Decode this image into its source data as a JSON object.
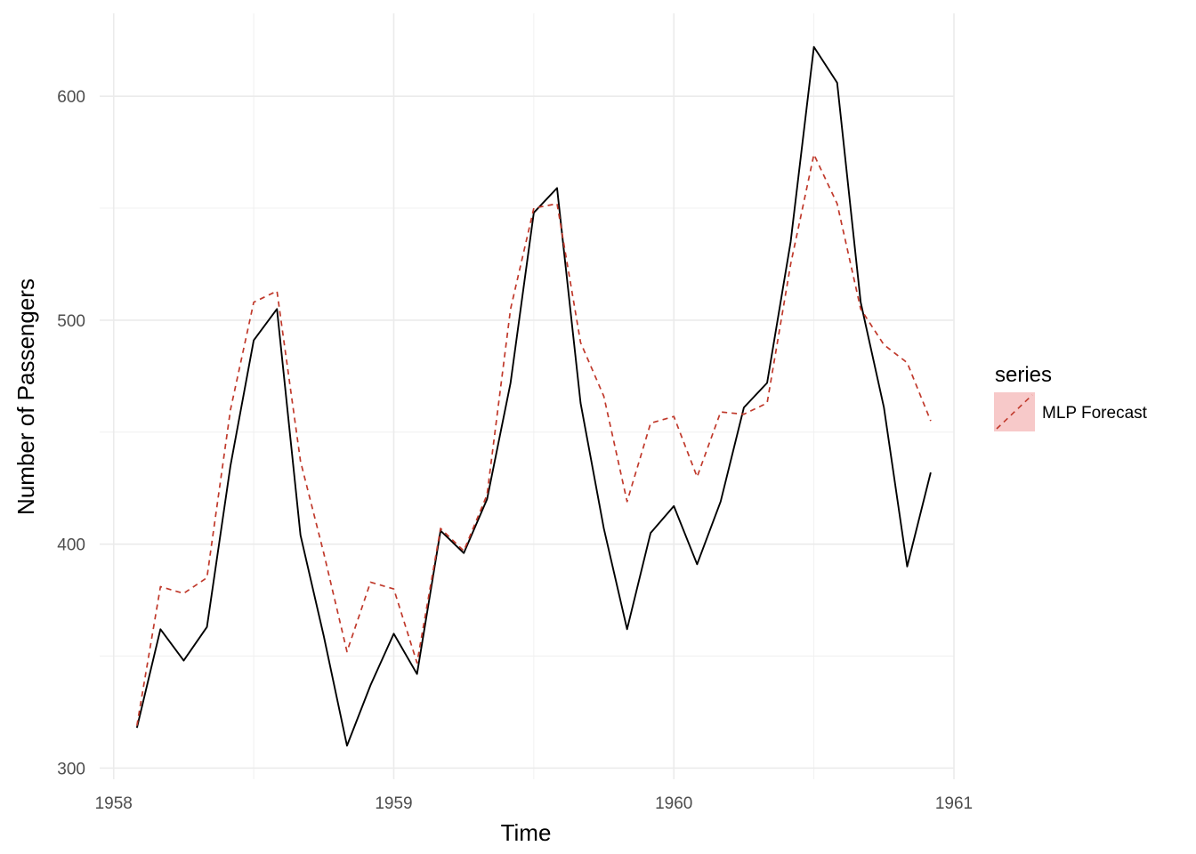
{
  "chart_data": {
    "type": "line",
    "xlabel": "Time",
    "ylabel": "Number of Passengers",
    "xlim": [
      1957.95,
      1961.0
    ],
    "ylim": [
      295,
      637
    ],
    "x_ticks": [
      1958,
      1959,
      1960,
      1961
    ],
    "x_tick_labels": [
      "1958",
      "1959",
      "1960",
      "1961"
    ],
    "y_ticks": [
      300,
      400,
      500,
      600
    ],
    "y_tick_labels": [
      "300",
      "400",
      "500",
      "600"
    ],
    "grid": true,
    "legend": {
      "title": "series",
      "position": "right",
      "entries": [
        "MLP Forecast"
      ]
    },
    "x": [
      1958.083,
      1958.167,
      1958.25,
      1958.333,
      1958.417,
      1958.5,
      1958.583,
      1958.667,
      1958.75,
      1958.833,
      1958.917,
      1959.0,
      1959.083,
      1959.167,
      1959.25,
      1959.333,
      1959.417,
      1959.5,
      1959.583,
      1959.667,
      1959.75,
      1959.833,
      1959.917,
      1960.0,
      1960.083,
      1960.167,
      1960.25,
      1960.333,
      1960.417,
      1960.5,
      1960.583,
      1960.667,
      1960.75,
      1960.833,
      1960.917
    ],
    "series": [
      {
        "name": "",
        "color": "#000000",
        "dash": "solid",
        "values": [
          318,
          362,
          348,
          363,
          435,
          491,
          505,
          404,
          359,
          310,
          337,
          360,
          342,
          406,
          396,
          420,
          472,
          548,
          559,
          463,
          407,
          362,
          405,
          417,
          391,
          419,
          461,
          472,
          535,
          622,
          606,
          508,
          461,
          390,
          432
        ]
      },
      {
        "name": "MLP Forecast",
        "color": "#c0392b",
        "dash": "dashed",
        "values": [
          319,
          381,
          378,
          385,
          460,
          508,
          513,
          437,
          396,
          352,
          383,
          380,
          347,
          407,
          397,
          422,
          505,
          550,
          552,
          490,
          466,
          419,
          454,
          457,
          430,
          459,
          458,
          463,
          525,
          574,
          552,
          505,
          489,
          481,
          455
        ]
      }
    ]
  }
}
